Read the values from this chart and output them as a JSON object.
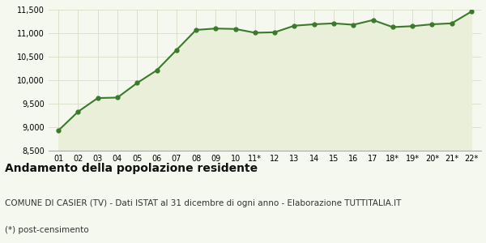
{
  "x_labels": [
    "01",
    "02",
    "03",
    "04",
    "05",
    "06",
    "07",
    "08",
    "09",
    "10",
    "11*",
    "12",
    "13",
    "14",
    "15",
    "16",
    "17",
    "18*",
    "19*",
    "20*",
    "21*",
    "22*"
  ],
  "y_values": [
    8930,
    9330,
    9620,
    9630,
    9940,
    10210,
    10640,
    11070,
    11100,
    11090,
    11010,
    11020,
    11160,
    11190,
    11210,
    11180,
    11280,
    11130,
    11150,
    11190,
    11210,
    11460
  ],
  "ylim": [
    8500,
    11500
  ],
  "yticks": [
    8500,
    9000,
    9500,
    10000,
    10500,
    11000,
    11500
  ],
  "line_color": "#3a7a2a",
  "fill_color": "#eaefda",
  "marker_color": "#3a7a2a",
  "bg_color": "#f5f8ee",
  "grid_color": "#d0d8bb",
  "title": "Andamento della popolazione residente",
  "subtitle": "COMUNE DI CASIER (TV) - Dati ISTAT al 31 dicembre di ogni anno - Elaborazione TUTTITALIA.IT",
  "footnote": "(*) post-censimento",
  "title_fontsize": 10,
  "subtitle_fontsize": 7.5,
  "footnote_fontsize": 7.5
}
